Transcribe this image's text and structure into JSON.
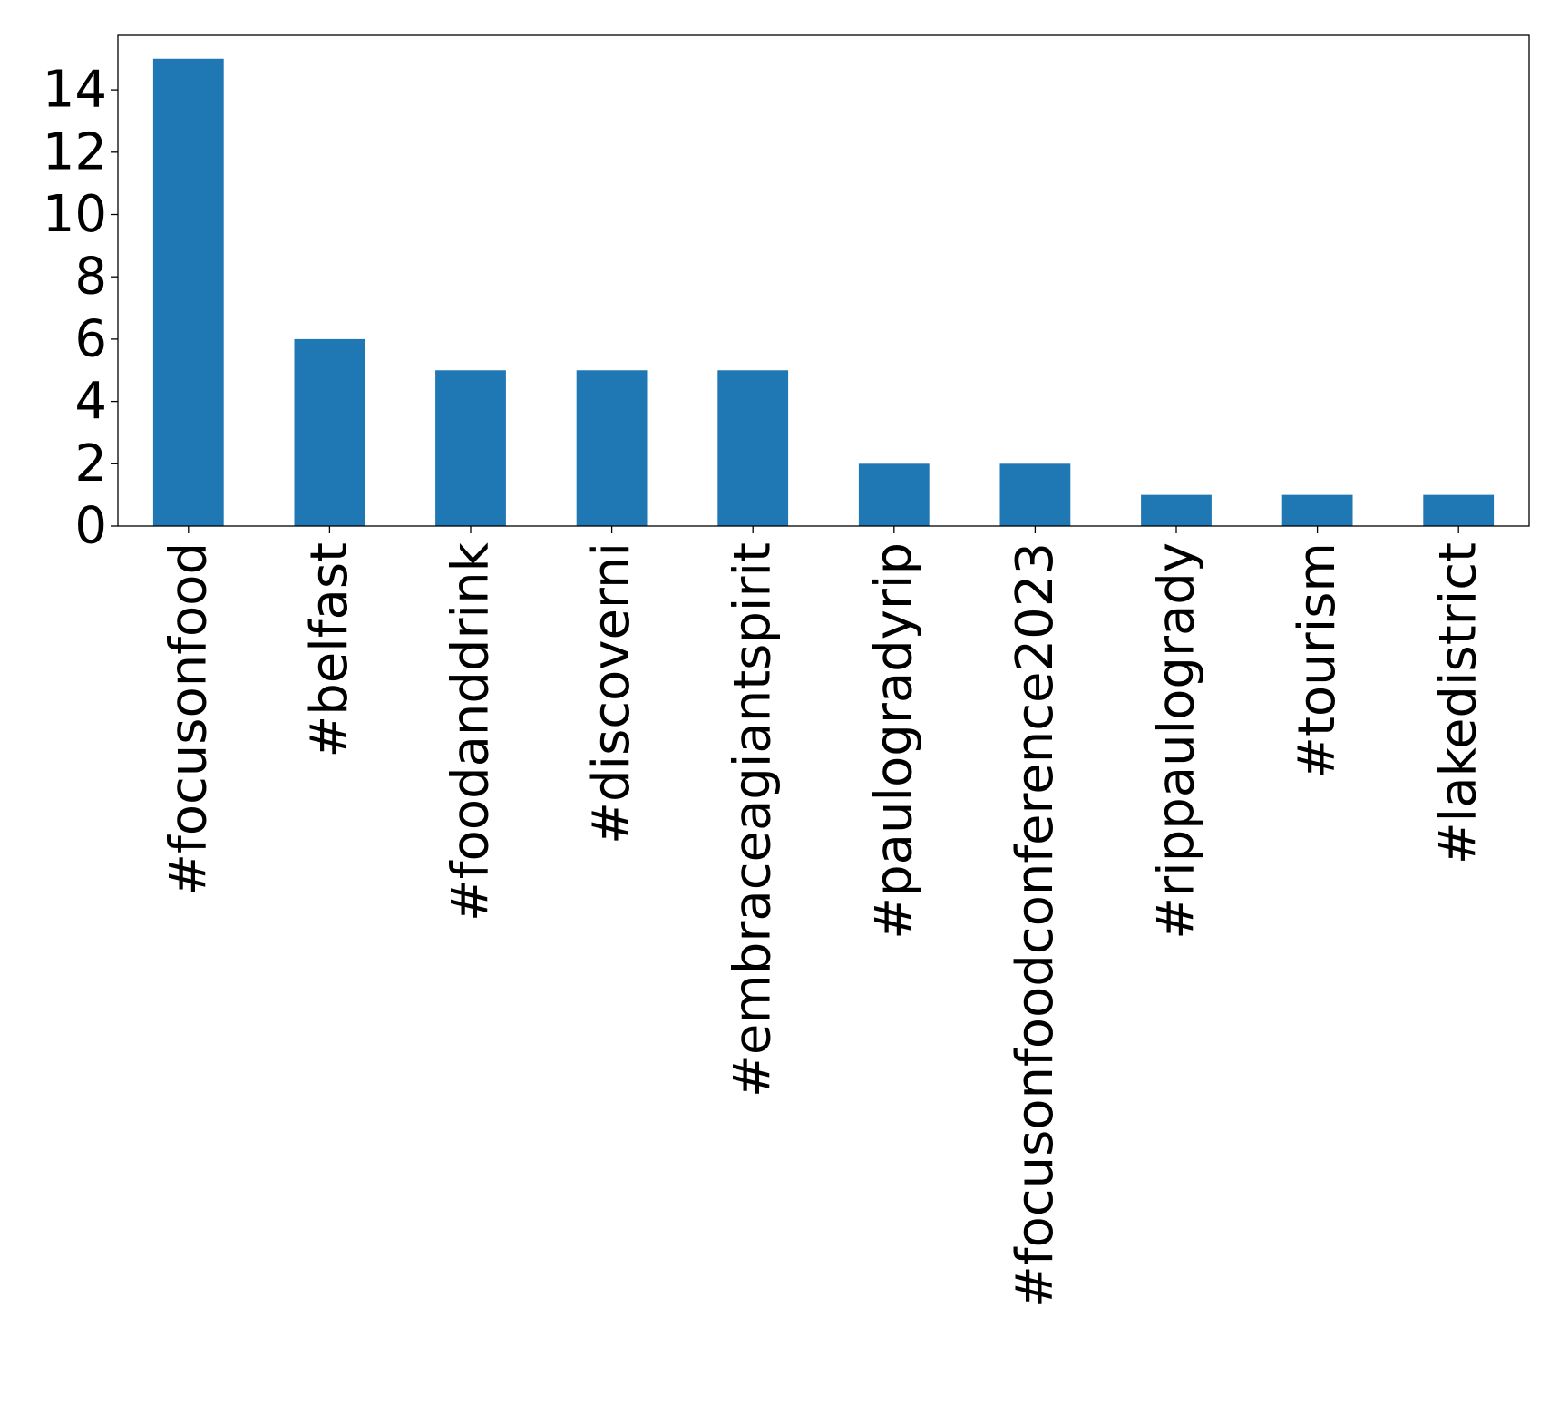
{
  "chart_data": {
    "type": "bar",
    "title": "",
    "xlabel": "",
    "ylabel": "",
    "categories": [
      "#focusonfood",
      "#belfast",
      "#foodanddrink",
      "#discoverni",
      "#embraceagiantspirit",
      "#paulogradyrip",
      "#focusonfoodconference2023",
      "#rippaulogrady",
      "#tourism",
      "#lakedistrict"
    ],
    "values": [
      15,
      6,
      5,
      5,
      5,
      2,
      2,
      1,
      1,
      1
    ],
    "ylim": [
      0,
      15.75
    ],
    "yticks": [
      0,
      2,
      4,
      6,
      8,
      10,
      12,
      14
    ],
    "grid": false,
    "legend": "none",
    "colors": {
      "bar": "#1f77b4",
      "axis": "#000000",
      "background": "#ffffff"
    }
  }
}
